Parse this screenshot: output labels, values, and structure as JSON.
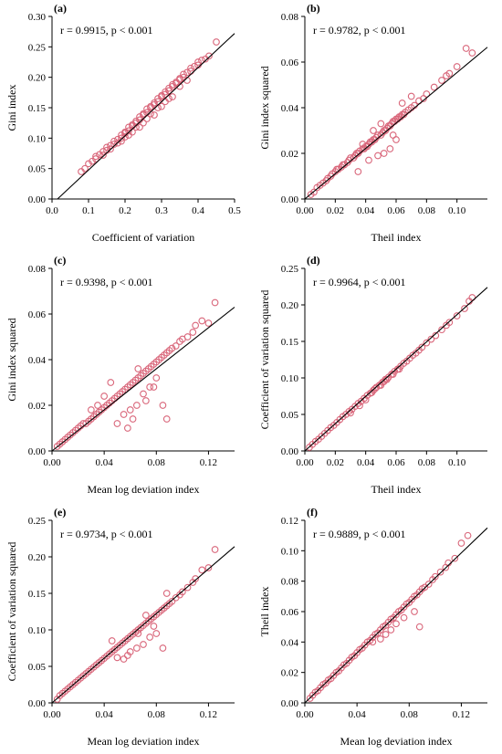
{
  "chart_data": [
    {
      "type": "scatter",
      "panel_label": "(a)",
      "stat_text": "r = 0.9915, p < 0.001",
      "xlabel": "Coefficient of variation",
      "ylabel": "Gini index",
      "xlim": [
        0,
        0.5
      ],
      "ylim": [
        0,
        0.3
      ],
      "xticks": [
        0,
        0.1,
        0.2,
        0.3,
        0.4,
        0.5
      ],
      "yticks": [
        0,
        0.05,
        0.1,
        0.15,
        0.2,
        0.25,
        0.3
      ],
      "xtick_labels": [
        "0.0",
        "0.1",
        "0.2",
        "0.3",
        "0.4",
        "0.5"
      ],
      "ytick_labels": [
        "0.00",
        "0.05",
        "0.10",
        "0.15",
        "0.20",
        "0.25",
        "0.30"
      ],
      "fit_line": {
        "x": [
          0.015,
          0.5
        ],
        "y": [
          0.0,
          0.272
        ]
      },
      "points": {
        "x": [
          0.08,
          0.09,
          0.1,
          0.11,
          0.12,
          0.12,
          0.13,
          0.14,
          0.15,
          0.15,
          0.16,
          0.17,
          0.17,
          0.18,
          0.19,
          0.19,
          0.2,
          0.2,
          0.21,
          0.21,
          0.22,
          0.22,
          0.23,
          0.23,
          0.24,
          0.24,
          0.25,
          0.25,
          0.26,
          0.26,
          0.27,
          0.27,
          0.28,
          0.28,
          0.29,
          0.29,
          0.3,
          0.3,
          0.31,
          0.31,
          0.32,
          0.32,
          0.33,
          0.33,
          0.34,
          0.34,
          0.35,
          0.35,
          0.36,
          0.36,
          0.37,
          0.38,
          0.38,
          0.39,
          0.4,
          0.4,
          0.41,
          0.42,
          0.43,
          0.45,
          0.21,
          0.24,
          0.27,
          0.3,
          0.33,
          0.25,
          0.28,
          0.22,
          0.19,
          0.16,
          0.14,
          0.31,
          0.35,
          0.29,
          0.26,
          0.23,
          0.18,
          0.2,
          0.32,
          0.37
        ],
        "y": [
          0.045,
          0.05,
          0.058,
          0.062,
          0.066,
          0.07,
          0.073,
          0.078,
          0.08,
          0.085,
          0.088,
          0.09,
          0.095,
          0.098,
          0.1,
          0.105,
          0.108,
          0.11,
          0.112,
          0.118,
          0.12,
          0.122,
          0.125,
          0.128,
          0.13,
          0.135,
          0.138,
          0.14,
          0.142,
          0.148,
          0.15,
          0.152,
          0.155,
          0.158,
          0.16,
          0.165,
          0.168,
          0.17,
          0.172,
          0.176,
          0.178,
          0.182,
          0.185,
          0.188,
          0.19,
          0.192,
          0.196,
          0.198,
          0.2,
          0.205,
          0.208,
          0.21,
          0.215,
          0.218,
          0.22,
          0.225,
          0.228,
          0.23,
          0.235,
          0.258,
          0.105,
          0.118,
          0.14,
          0.152,
          0.168,
          0.125,
          0.138,
          0.11,
          0.095,
          0.082,
          0.072,
          0.16,
          0.185,
          0.15,
          0.132,
          0.118,
          0.092,
          0.102,
          0.165,
          0.195
        ]
      }
    },
    {
      "type": "scatter",
      "panel_label": "(b)",
      "stat_text": "r = 0.9782, p < 0.001",
      "xlabel": "Theil index",
      "ylabel": "Gini index squared",
      "xlim": [
        0,
        0.12
      ],
      "ylim": [
        0,
        0.08
      ],
      "xticks": [
        0,
        0.02,
        0.04,
        0.06,
        0.08,
        0.1
      ],
      "yticks": [
        0,
        0.02,
        0.04,
        0.06,
        0.08
      ],
      "xtick_labels": [
        "0.00",
        "0.02",
        "0.04",
        "0.06",
        "0.08",
        "0.10"
      ],
      "ytick_labels": [
        "0.00",
        "0.02",
        "0.04",
        "0.06",
        "0.08"
      ],
      "fit_line": {
        "x": [
          0.0,
          0.12
        ],
        "y": [
          0.0,
          0.0665
        ]
      },
      "points": {
        "x": [
          0.004,
          0.006,
          0.008,
          0.01,
          0.012,
          0.014,
          0.015,
          0.017,
          0.018,
          0.02,
          0.021,
          0.022,
          0.024,
          0.025,
          0.026,
          0.028,
          0.029,
          0.03,
          0.032,
          0.033,
          0.034,
          0.035,
          0.036,
          0.038,
          0.039,
          0.04,
          0.041,
          0.042,
          0.043,
          0.044,
          0.045,
          0.046,
          0.047,
          0.048,
          0.05,
          0.051,
          0.052,
          0.053,
          0.054,
          0.055,
          0.056,
          0.057,
          0.058,
          0.059,
          0.06,
          0.061,
          0.062,
          0.063,
          0.064,
          0.065,
          0.066,
          0.068,
          0.07,
          0.072,
          0.075,
          0.078,
          0.08,
          0.085,
          0.09,
          0.093,
          0.095,
          0.1,
          0.106,
          0.11,
          0.042,
          0.048,
          0.052,
          0.056,
          0.038,
          0.045,
          0.06,
          0.064,
          0.035,
          0.05,
          0.058,
          0.07
        ],
        "y": [
          0.002,
          0.003,
          0.005,
          0.006,
          0.007,
          0.008,
          0.009,
          0.01,
          0.011,
          0.012,
          0.013,
          0.013,
          0.014,
          0.015,
          0.015,
          0.016,
          0.017,
          0.018,
          0.018,
          0.019,
          0.02,
          0.02,
          0.021,
          0.022,
          0.022,
          0.023,
          0.023,
          0.024,
          0.025,
          0.025,
          0.026,
          0.026,
          0.027,
          0.028,
          0.028,
          0.029,
          0.03,
          0.03,
          0.031,
          0.032,
          0.032,
          0.033,
          0.034,
          0.034,
          0.035,
          0.035,
          0.036,
          0.036,
          0.037,
          0.037,
          0.038,
          0.039,
          0.04,
          0.041,
          0.043,
          0.044,
          0.046,
          0.049,
          0.052,
          0.054,
          0.055,
          0.058,
          0.066,
          0.064,
          0.017,
          0.019,
          0.02,
          0.022,
          0.024,
          0.03,
          0.026,
          0.042,
          0.012,
          0.033,
          0.028,
          0.045
        ]
      }
    },
    {
      "type": "scatter",
      "panel_label": "(c)",
      "stat_text": "r = 0.9398, p < 0.001",
      "xlabel": "Mean log deviation index",
      "ylabel": "Gini index squared",
      "xlim": [
        0,
        0.14
      ],
      "ylim": [
        0,
        0.08
      ],
      "xticks": [
        0,
        0.04,
        0.08,
        0.12
      ],
      "yticks": [
        0,
        0.02,
        0.04,
        0.06,
        0.08
      ],
      "xtick_labels": [
        "0.00",
        "0.04",
        "0.08",
        "0.12"
      ],
      "ytick_labels": [
        "0.00",
        "0.02",
        "0.04",
        "0.06",
        "0.08"
      ],
      "fit_line": {
        "x": [
          0.0,
          0.14
        ],
        "y": [
          0.0,
          0.063
        ]
      },
      "points": {
        "x": [
          0.004,
          0.006,
          0.008,
          0.01,
          0.012,
          0.014,
          0.016,
          0.018,
          0.02,
          0.022,
          0.024,
          0.026,
          0.028,
          0.03,
          0.032,
          0.034,
          0.036,
          0.038,
          0.04,
          0.042,
          0.044,
          0.046,
          0.048,
          0.05,
          0.052,
          0.054,
          0.056,
          0.058,
          0.06,
          0.062,
          0.064,
          0.066,
          0.068,
          0.07,
          0.072,
          0.074,
          0.076,
          0.078,
          0.08,
          0.082,
          0.084,
          0.086,
          0.088,
          0.09,
          0.092,
          0.095,
          0.098,
          0.1,
          0.104,
          0.108,
          0.11,
          0.115,
          0.12,
          0.125,
          0.05,
          0.055,
          0.06,
          0.065,
          0.07,
          0.075,
          0.08,
          0.085,
          0.058,
          0.062,
          0.045,
          0.04,
          0.072,
          0.066,
          0.078,
          0.088,
          0.035,
          0.03
        ],
        "y": [
          0.002,
          0.003,
          0.004,
          0.005,
          0.006,
          0.007,
          0.008,
          0.009,
          0.01,
          0.011,
          0.012,
          0.012,
          0.013,
          0.014,
          0.015,
          0.016,
          0.017,
          0.018,
          0.019,
          0.02,
          0.021,
          0.022,
          0.023,
          0.024,
          0.025,
          0.026,
          0.027,
          0.028,
          0.029,
          0.03,
          0.031,
          0.032,
          0.033,
          0.034,
          0.035,
          0.036,
          0.037,
          0.038,
          0.039,
          0.04,
          0.041,
          0.042,
          0.043,
          0.044,
          0.045,
          0.046,
          0.048,
          0.049,
          0.05,
          0.052,
          0.055,
          0.057,
          0.056,
          0.065,
          0.012,
          0.016,
          0.018,
          0.02,
          0.025,
          0.028,
          0.032,
          0.02,
          0.01,
          0.014,
          0.03,
          0.024,
          0.022,
          0.036,
          0.028,
          0.014,
          0.02,
          0.018
        ]
      }
    },
    {
      "type": "scatter",
      "panel_label": "(d)",
      "stat_text": "r = 0.9964, p < 0.001",
      "xlabel": "Theil index",
      "ylabel": "Coefficient of variation squared",
      "xlim": [
        0,
        0.12
      ],
      "ylim": [
        0,
        0.25
      ],
      "xticks": [
        0,
        0.02,
        0.04,
        0.06,
        0.08,
        0.1
      ],
      "yticks": [
        0,
        0.05,
        0.1,
        0.15,
        0.2,
        0.25
      ],
      "xtick_labels": [
        "0.00",
        "0.02",
        "0.04",
        "0.06",
        "0.08",
        "0.10"
      ],
      "ytick_labels": [
        "0.00",
        "0.05",
        "0.10",
        "0.15",
        "0.20",
        "0.25"
      ],
      "fit_line": {
        "x": [
          0.0,
          0.12
        ],
        "y": [
          0.0,
          0.224
        ]
      },
      "points": {
        "x": [
          0.003,
          0.005,
          0.007,
          0.009,
          0.011,
          0.013,
          0.015,
          0.017,
          0.019,
          0.021,
          0.023,
          0.025,
          0.027,
          0.029,
          0.031,
          0.033,
          0.035,
          0.037,
          0.039,
          0.041,
          0.043,
          0.045,
          0.047,
          0.049,
          0.051,
          0.053,
          0.055,
          0.057,
          0.059,
          0.061,
          0.063,
          0.065,
          0.067,
          0.069,
          0.071,
          0.073,
          0.075,
          0.077,
          0.08,
          0.083,
          0.086,
          0.09,
          0.093,
          0.095,
          0.1,
          0.105,
          0.108,
          0.11,
          0.04,
          0.044,
          0.05,
          0.054,
          0.058,
          0.036,
          0.046,
          0.052,
          0.062,
          0.03
        ],
        "y": [
          0.005,
          0.009,
          0.013,
          0.016,
          0.02,
          0.024,
          0.028,
          0.032,
          0.035,
          0.039,
          0.043,
          0.047,
          0.05,
          0.054,
          0.057,
          0.061,
          0.065,
          0.068,
          0.072,
          0.076,
          0.079,
          0.083,
          0.087,
          0.09,
          0.094,
          0.098,
          0.101,
          0.105,
          0.109,
          0.112,
          0.116,
          0.12,
          0.123,
          0.127,
          0.131,
          0.134,
          0.138,
          0.142,
          0.148,
          0.153,
          0.158,
          0.166,
          0.172,
          0.176,
          0.185,
          0.195,
          0.205,
          0.21,
          0.07,
          0.08,
          0.09,
          0.098,
          0.105,
          0.062,
          0.085,
          0.095,
          0.112,
          0.052
        ]
      }
    },
    {
      "type": "scatter",
      "panel_label": "(e)",
      "stat_text": "r = 0.9734, p < 0.001",
      "xlabel": "Mean log deviation index",
      "ylabel": "Coefficient of variation squared",
      "xlim": [
        0,
        0.14
      ],
      "ylim": [
        0,
        0.25
      ],
      "xticks": [
        0,
        0.04,
        0.08,
        0.12
      ],
      "yticks": [
        0,
        0.05,
        0.1,
        0.15,
        0.2,
        0.25
      ],
      "xtick_labels": [
        "0.00",
        "0.04",
        "0.08",
        "0.12"
      ],
      "ytick_labels": [
        "0.00",
        "0.05",
        "0.10",
        "0.15",
        "0.20",
        "0.25"
      ],
      "fit_line": {
        "x": [
          0.0,
          0.14
        ],
        "y": [
          0.0,
          0.214
        ]
      },
      "points": {
        "x": [
          0.004,
          0.006,
          0.008,
          0.01,
          0.012,
          0.014,
          0.016,
          0.018,
          0.02,
          0.022,
          0.024,
          0.026,
          0.028,
          0.03,
          0.032,
          0.034,
          0.036,
          0.038,
          0.04,
          0.042,
          0.044,
          0.046,
          0.048,
          0.05,
          0.052,
          0.054,
          0.056,
          0.058,
          0.06,
          0.062,
          0.064,
          0.066,
          0.068,
          0.07,
          0.072,
          0.074,
          0.076,
          0.078,
          0.08,
          0.082,
          0.084,
          0.086,
          0.088,
          0.09,
          0.092,
          0.095,
          0.098,
          0.1,
          0.104,
          0.108,
          0.11,
          0.115,
          0.12,
          0.125,
          0.06,
          0.065,
          0.07,
          0.075,
          0.08,
          0.085,
          0.05,
          0.055,
          0.072,
          0.066,
          0.046,
          0.088,
          0.078,
          0.058
        ],
        "y": [
          0.005,
          0.01,
          0.013,
          0.016,
          0.019,
          0.022,
          0.025,
          0.028,
          0.031,
          0.034,
          0.037,
          0.04,
          0.043,
          0.046,
          0.049,
          0.052,
          0.055,
          0.058,
          0.061,
          0.064,
          0.067,
          0.07,
          0.073,
          0.076,
          0.079,
          0.082,
          0.085,
          0.088,
          0.091,
          0.094,
          0.097,
          0.1,
          0.103,
          0.106,
          0.109,
          0.112,
          0.115,
          0.118,
          0.121,
          0.124,
          0.127,
          0.13,
          0.133,
          0.136,
          0.139,
          0.144,
          0.148,
          0.152,
          0.158,
          0.165,
          0.17,
          0.182,
          0.185,
          0.21,
          0.07,
          0.075,
          0.08,
          0.09,
          0.095,
          0.075,
          0.062,
          0.06,
          0.12,
          0.095,
          0.085,
          0.15,
          0.105,
          0.065
        ]
      }
    },
    {
      "type": "scatter",
      "panel_label": "(f)",
      "stat_text": "r = 0.9889, p < 0.001",
      "xlabel": "Mean log deviation index",
      "ylabel": "Theil index",
      "xlim": [
        0,
        0.14
      ],
      "ylim": [
        0,
        0.12
      ],
      "xticks": [
        0,
        0.04,
        0.08,
        0.12
      ],
      "yticks": [
        0,
        0.02,
        0.04,
        0.06,
        0.08,
        0.1,
        0.12
      ],
      "xtick_labels": [
        "0.00",
        "0.04",
        "0.08",
        "0.12"
      ],
      "ytick_labels": [
        "0.00",
        "0.02",
        "0.04",
        "0.06",
        "0.08",
        "0.10",
        "0.12"
      ],
      "fit_line": {
        "x": [
          0.0,
          0.14
        ],
        "y": [
          0.0,
          0.115
        ]
      },
      "points": {
        "x": [
          0.004,
          0.006,
          0.008,
          0.01,
          0.012,
          0.014,
          0.016,
          0.018,
          0.02,
          0.022,
          0.024,
          0.026,
          0.028,
          0.03,
          0.032,
          0.034,
          0.036,
          0.038,
          0.04,
          0.042,
          0.044,
          0.046,
          0.048,
          0.05,
          0.052,
          0.054,
          0.056,
          0.058,
          0.06,
          0.062,
          0.064,
          0.066,
          0.068,
          0.07,
          0.072,
          0.074,
          0.076,
          0.078,
          0.08,
          0.082,
          0.084,
          0.086,
          0.088,
          0.09,
          0.092,
          0.095,
          0.098,
          0.1,
          0.104,
          0.108,
          0.11,
          0.115,
          0.12,
          0.125,
          0.058,
          0.062,
          0.07,
          0.076,
          0.084,
          0.088,
          0.066,
          0.052
        ],
        "y": [
          0.003,
          0.005,
          0.007,
          0.008,
          0.01,
          0.012,
          0.013,
          0.015,
          0.016,
          0.018,
          0.02,
          0.021,
          0.023,
          0.025,
          0.026,
          0.028,
          0.03,
          0.031,
          0.033,
          0.035,
          0.036,
          0.038,
          0.04,
          0.041,
          0.043,
          0.045,
          0.046,
          0.048,
          0.05,
          0.051,
          0.053,
          0.055,
          0.056,
          0.058,
          0.06,
          0.061,
          0.063,
          0.065,
          0.066,
          0.068,
          0.07,
          0.071,
          0.073,
          0.075,
          0.076,
          0.078,
          0.081,
          0.083,
          0.086,
          0.089,
          0.092,
          0.095,
          0.105,
          0.11,
          0.042,
          0.045,
          0.052,
          0.056,
          0.06,
          0.05,
          0.048,
          0.04
        ]
      }
    }
  ]
}
